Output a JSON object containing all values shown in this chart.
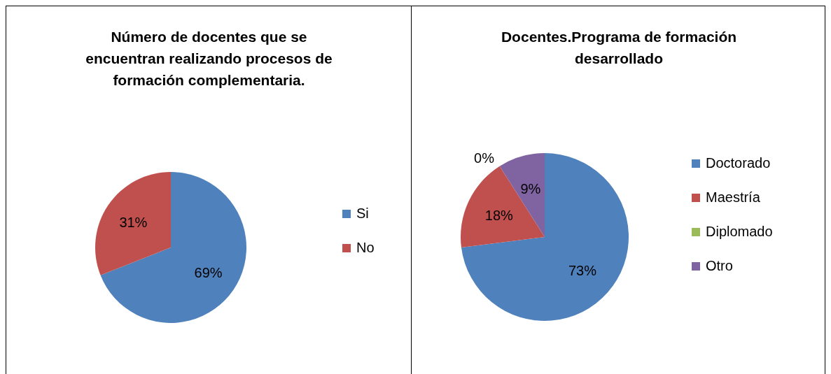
{
  "chart_data": [
    {
      "type": "pie",
      "title": "Número de docentes que se encuentran realizando procesos de formación complementaria.",
      "categories": [
        "Si",
        "No"
      ],
      "values": [
        69,
        31
      ],
      "colors": [
        "#4f81bd",
        "#c0504d"
      ],
      "value_labels": [
        "69%",
        "31%"
      ],
      "legend": "right"
    },
    {
      "type": "pie",
      "title": "Docentes.Programa de formación desarrollado",
      "categories": [
        "Doctorado",
        "Maestría",
        "Diplomado",
        "Otro"
      ],
      "values": [
        73,
        18,
        0,
        9
      ],
      "colors": [
        "#4f81bd",
        "#c0504d",
        "#9bbb59",
        "#8064a2"
      ],
      "value_labels": [
        "73%",
        "18%",
        "0%",
        "9%"
      ],
      "legend": "right"
    }
  ]
}
